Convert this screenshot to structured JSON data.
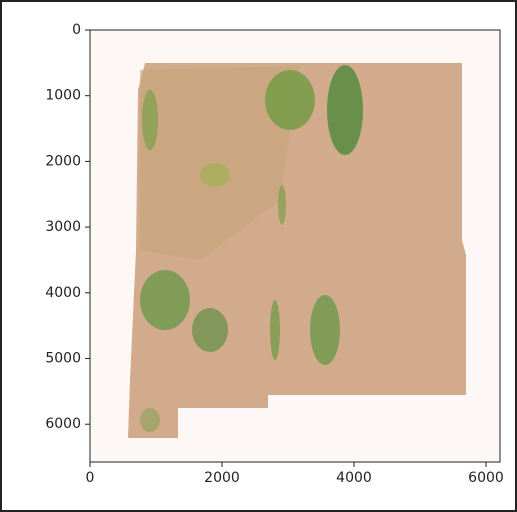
{
  "chart_data": {
    "type": "image",
    "xlim": [
      0,
      6212
    ],
    "ylim": [
      6575,
      0
    ],
    "xticks": [
      0,
      2000,
      4000,
      6000
    ],
    "yticks": [
      0,
      1000,
      2000,
      3000,
      4000,
      5000,
      6000
    ]
  }
}
